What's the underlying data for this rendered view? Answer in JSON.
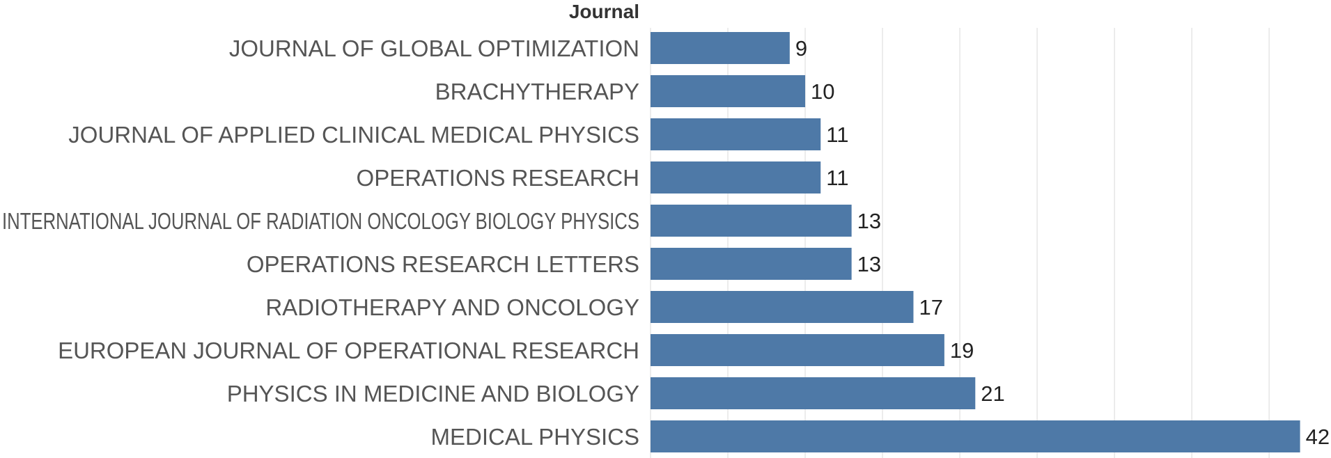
{
  "header": {
    "column_title": "Journal"
  },
  "chart_data": {
    "type": "bar",
    "orientation": "horizontal",
    "categories": [
      "JOURNAL OF GLOBAL OPTIMIZATION",
      "BRACHYTHERAPY",
      "JOURNAL OF APPLIED CLINICAL MEDICAL PHYSICS",
      "OPERATIONS RESEARCH",
      "INTERNATIONAL JOURNAL OF RADIATION ONCOLOGY BIOLOGY PHYSICS",
      "OPERATIONS RESEARCH LETTERS",
      "RADIOTHERAPY AND ONCOLOGY",
      "EUROPEAN JOURNAL OF OPERATIONAL RESEARCH",
      "PHYSICS IN MEDICINE AND BIOLOGY",
      "MEDICAL PHYSICS"
    ],
    "values": [
      9,
      10,
      11,
      11,
      13,
      13,
      17,
      19,
      21,
      42
    ],
    "xlim": [
      0,
      44
    ],
    "grid_step": 5,
    "grid": true,
    "bar_color": "#4e79a7",
    "title": "",
    "xlabel": "",
    "ylabel": "Journal"
  }
}
